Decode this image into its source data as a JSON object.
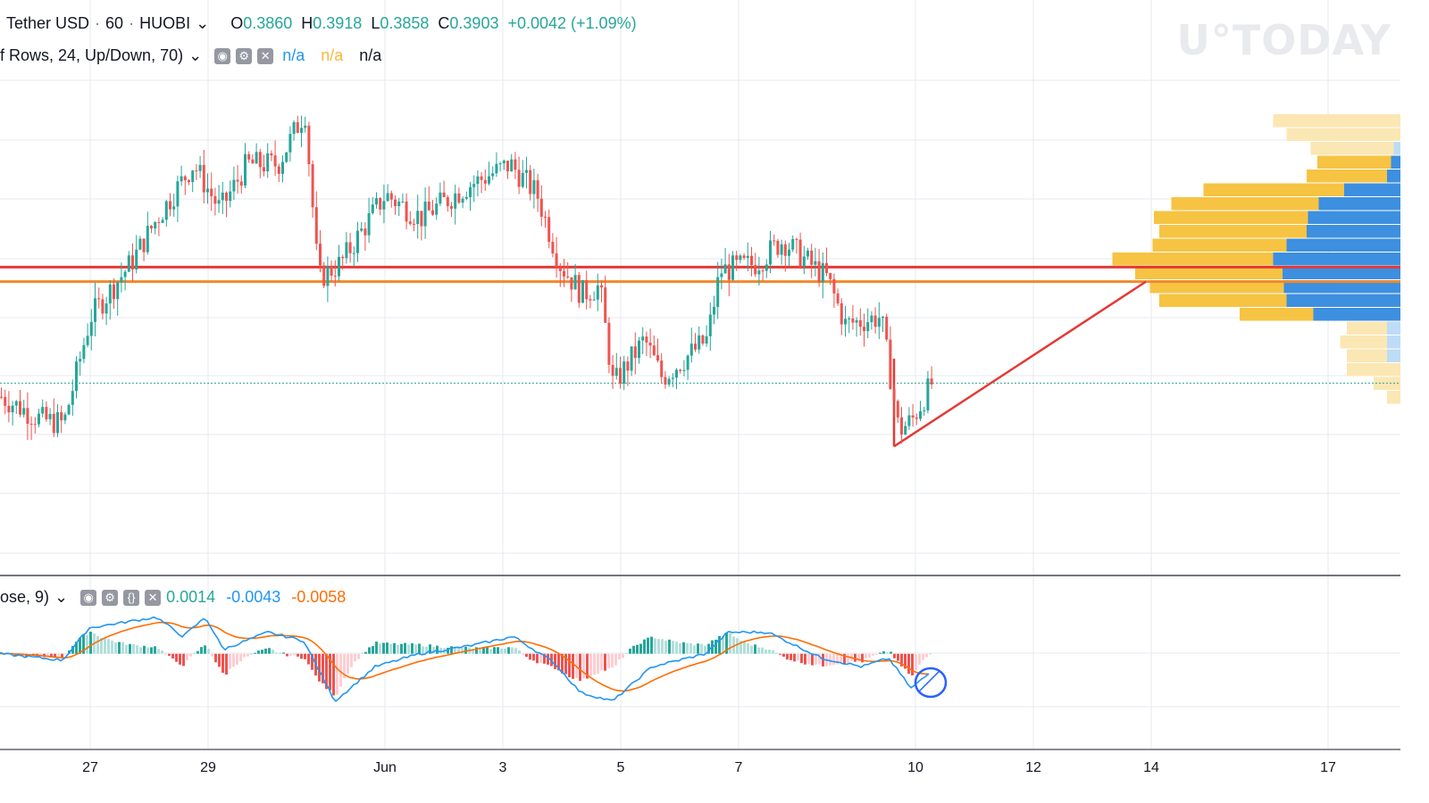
{
  "header": {
    "symbol": "Tether USD",
    "interval": "60",
    "exchange": "HUOBI",
    "chevron": "⌄",
    "o_label": "O",
    "o_value": "0.3860",
    "h_label": "H",
    "h_value": "0.3918",
    "l_label": "L",
    "l_value": "0.3858",
    "c_label": "C",
    "c_value": "0.3903",
    "change": "+0.0042 (+1.09%)"
  },
  "volume_profile_legend": {
    "title": "f Rows, 24, Up/Down, 70)",
    "chevron": "⌄",
    "v1": "n/a",
    "v2": "n/a",
    "v3": "n/a"
  },
  "macd_legend": {
    "title": "ose, 9)",
    "chevron": "⌄",
    "hist": "0.0014",
    "macd": "-0.0043",
    "signal": "-0.0058"
  },
  "watermark": "U°TODAY",
  "colors": {
    "up": "#26a69a",
    "down": "#ef5350",
    "resistance": "#e53935",
    "support": "#ef8a2b",
    "macd_line": "#2196f3",
    "signal_line": "#ff6d00",
    "profile_up": "#f6c343",
    "profile_down": "#3d8fe0"
  },
  "chart_data": {
    "type": "candlestick",
    "x_ticks": [
      "27",
      "29",
      "Jun",
      "3",
      "5",
      "7",
      "10",
      "12",
      "14",
      "17"
    ],
    "price_path": [
      {
        "t": 0,
        "p": 0.3885
      },
      {
        "t": 45,
        "p": 0.3855
      },
      {
        "t": 70,
        "p": 0.385
      },
      {
        "t": 100,
        "p": 0.399
      },
      {
        "t": 145,
        "p": 0.406
      },
      {
        "t": 175,
        "p": 0.412
      },
      {
        "t": 215,
        "p": 0.419
      },
      {
        "t": 245,
        "p": 0.413
      },
      {
        "t": 275,
        "p": 0.419
      },
      {
        "t": 310,
        "p": 0.419
      },
      {
        "t": 340,
        "p": 0.426
      },
      {
        "t": 355,
        "p": 0.404
      },
      {
        "t": 380,
        "p": 0.406
      },
      {
        "t": 430,
        "p": 0.415
      },
      {
        "t": 470,
        "p": 0.412
      },
      {
        "t": 520,
        "p": 0.416
      },
      {
        "t": 570,
        "p": 0.419
      },
      {
        "t": 600,
        "p": 0.415
      },
      {
        "t": 625,
        "p": 0.406
      },
      {
        "t": 650,
        "p": 0.402
      },
      {
        "t": 670,
        "p": 0.403
      },
      {
        "t": 685,
        "p": 0.39
      },
      {
        "t": 720,
        "p": 0.396
      },
      {
        "t": 740,
        "p": 0.391
      },
      {
        "t": 790,
        "p": 0.396
      },
      {
        "t": 805,
        "p": 0.405
      },
      {
        "t": 845,
        "p": 0.406
      },
      {
        "t": 875,
        "p": 0.409
      },
      {
        "t": 925,
        "p": 0.404
      },
      {
        "t": 945,
        "p": 0.398
      },
      {
        "t": 985,
        "p": 0.399
      },
      {
        "t": 1005,
        "p": 0.384
      },
      {
        "t": 1020,
        "p": 0.3855
      },
      {
        "t": 1042,
        "p": 0.3903
      }
    ],
    "resistance_level": 0.4055,
    "support_level": 0.4036,
    "last_price": 0.3903,
    "trendline": {
      "from": {
        "t": 1001,
        "p": 0.382
      },
      "to": {
        "t": 1283,
        "p": 0.4036
      }
    },
    "y_range": [
      0.368,
      0.43
    ],
    "volume_profile": [
      {
        "up": 0.95,
        "down": 0.0
      },
      {
        "up": 0.85,
        "down": 0.0
      },
      {
        "up": 0.62,
        "down": 0.05
      },
      {
        "up": 0.55,
        "down": 0.07
      },
      {
        "up": 0.6,
        "down": 0.1
      },
      {
        "up": 1.05,
        "down": 0.42
      },
      {
        "up": 1.1,
        "down": 0.61
      },
      {
        "up": 1.15,
        "down": 0.69
      },
      {
        "up": 1.1,
        "down": 0.7
      },
      {
        "up": 1.0,
        "down": 0.85
      },
      {
        "up": 1.2,
        "down": 0.95
      },
      {
        "up": 1.1,
        "down": 0.88
      },
      {
        "up": 1.0,
        "down": 0.87
      },
      {
        "up": 0.95,
        "down": 0.85
      },
      {
        "up": 0.55,
        "down": 0.65
      },
      {
        "up": 0.3,
        "down": 0.1
      },
      {
        "up": 0.35,
        "down": 0.1
      },
      {
        "up": 0.3,
        "down": 0.1
      },
      {
        "up": 0.4,
        "down": 0.0
      },
      {
        "up": 0.2,
        "down": 0.0
      },
      {
        "up": 0.1,
        "down": 0.0
      }
    ],
    "macd_path": [
      {
        "t": 0,
        "m": 0.0
      },
      {
        "t": 70,
        "m": -0.0015
      },
      {
        "t": 100,
        "m": 0.006
      },
      {
        "t": 175,
        "m": 0.0085
      },
      {
        "t": 205,
        "m": 0.004
      },
      {
        "t": 230,
        "m": 0.0085
      },
      {
        "t": 250,
        "m": 0.001
      },
      {
        "t": 300,
        "m": 0.005
      },
      {
        "t": 340,
        "m": 0.003
      },
      {
        "t": 375,
        "m": -0.011
      },
      {
        "t": 420,
        "m": -0.003
      },
      {
        "t": 470,
        "m": 0.0
      },
      {
        "t": 530,
        "m": 0.002
      },
      {
        "t": 575,
        "m": 0.004
      },
      {
        "t": 620,
        "m": -0.002
      },
      {
        "t": 650,
        "m": -0.009
      },
      {
        "t": 686,
        "m": -0.011
      },
      {
        "t": 730,
        "m": -0.003
      },
      {
        "t": 790,
        "m": 0.0
      },
      {
        "t": 815,
        "m": 0.005
      },
      {
        "t": 860,
        "m": 0.005
      },
      {
        "t": 920,
        "m": -0.001
      },
      {
        "t": 965,
        "m": -0.003
      },
      {
        "t": 995,
        "m": -0.001
      },
      {
        "t": 1020,
        "m": -0.008
      },
      {
        "t": 1042,
        "m": -0.0043
      }
    ],
    "macd_range": [
      -0.0135,
      0.0105
    ]
  }
}
